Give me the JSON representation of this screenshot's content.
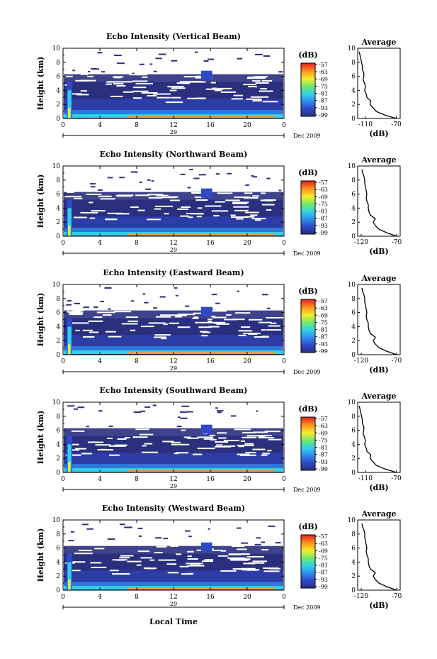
{
  "figure": {
    "xlabel": "Local Time",
    "ylabel": "Height (km)",
    "date_label": "Dec 2009",
    "day_label": "29",
    "cbar_unit": "(dB)",
    "avg_title": "Average",
    "avg_xlabel": "(dB)"
  },
  "chart_data": [
    {
      "type": "heatmap",
      "title": "Echo Intensity (Vertical Beam)",
      "x_ticks": [
        "0",
        "4",
        "8",
        "12",
        "16",
        "20",
        "0"
      ],
      "xlim": [
        0,
        24
      ],
      "y_ticks": [
        "0",
        "2",
        "4",
        "6",
        "8",
        "10"
      ],
      "ylim": [
        0,
        10
      ],
      "colorbar_ticks": [
        "-57",
        "-63",
        "-69",
        "-75",
        "-81",
        "-87",
        "-93",
        "-99"
      ],
      "colorbar_range": [
        -99,
        -57
      ],
      "avg_x_ticks": [
        "-110",
        "-70"
      ],
      "avg_xlim": [
        -120,
        -65
      ],
      "avg_profile": {
        "height": [
          0,
          0.5,
          1,
          1.5,
          2,
          2.5,
          3,
          3.5,
          4,
          4.5,
          5,
          5.5,
          6,
          6.5,
          7,
          7.5,
          8,
          8.5,
          9,
          9.5
        ],
        "db": [
          -70,
          -85,
          -96,
          -100,
          -104,
          -103,
          -108,
          -109,
          -111,
          -110,
          -111,
          -113,
          -112,
          -112,
          -114,
          -114,
          -115,
          -116,
          -117,
          -118
        ]
      }
    },
    {
      "type": "heatmap",
      "title": "Echo Intensity (Northward Beam)",
      "x_ticks": [
        "0",
        "4",
        "8",
        "12",
        "16",
        "20",
        "0"
      ],
      "xlim": [
        0,
        24
      ],
      "y_ticks": [
        "0",
        "2",
        "4",
        "6",
        "8",
        "10"
      ],
      "ylim": [
        0,
        10
      ],
      "colorbar_ticks": [
        "-57",
        "-63",
        "-69",
        "-75",
        "-81",
        "-87",
        "-93",
        "-99"
      ],
      "colorbar_range": [
        -99,
        -57
      ],
      "avg_x_ticks": [
        "-120",
        "-70"
      ],
      "avg_xlim": [
        -125,
        -65
      ],
      "avg_profile": {
        "height": [
          0,
          0.5,
          1,
          1.5,
          2,
          2.5,
          3,
          3.5,
          4,
          4.5,
          5,
          5.5,
          6,
          6.5,
          7,
          7.5,
          8,
          8.5,
          9,
          9.5
        ],
        "db": [
          -70,
          -84,
          -95,
          -100,
          -103,
          -100,
          -107,
          -109,
          -110,
          -110,
          -112,
          -113,
          -112,
          -113,
          -114,
          -115,
          -115,
          -116,
          -118,
          -119
        ]
      }
    },
    {
      "type": "heatmap",
      "title": "Echo Intensity (Eastward Beam)",
      "x_ticks": [
        "0",
        "4",
        "8",
        "12",
        "16",
        "20",
        "0"
      ],
      "xlim": [
        0,
        24
      ],
      "y_ticks": [
        "0",
        "2",
        "4",
        "6",
        "8",
        "10"
      ],
      "ylim": [
        0,
        10
      ],
      "colorbar_ticks": [
        "-57",
        "-63",
        "-69",
        "-75",
        "-81",
        "-87",
        "-93",
        "-99"
      ],
      "colorbar_range": [
        -99,
        -57
      ],
      "avg_x_ticks": [
        "-120",
        "-70"
      ],
      "avg_xlim": [
        -125,
        -65
      ],
      "avg_profile": {
        "height": [
          0,
          0.5,
          1,
          1.5,
          2,
          2.5,
          3,
          3.5,
          4,
          4.5,
          5,
          5.5,
          6,
          6.5,
          7,
          7.5,
          8,
          8.5,
          9,
          9.5
        ],
        "db": [
          -70,
          -84,
          -95,
          -100,
          -103,
          -100,
          -107,
          -109,
          -110,
          -110,
          -112,
          -113,
          -112,
          -113,
          -114,
          -115,
          -115,
          -116,
          -118,
          -119
        ]
      }
    },
    {
      "type": "heatmap",
      "title": "Echo Intensity (Southward Beam)",
      "x_ticks": [
        "0",
        "4",
        "8",
        "12",
        "16",
        "20",
        "0"
      ],
      "xlim": [
        0,
        24
      ],
      "y_ticks": [
        "0",
        "2",
        "4",
        "6",
        "8",
        "10"
      ],
      "ylim": [
        0,
        10
      ],
      "colorbar_ticks": [
        "-57",
        "-63",
        "-69",
        "-75",
        "-81",
        "-87",
        "-93",
        "-99"
      ],
      "colorbar_range": [
        -99,
        -57
      ],
      "avg_x_ticks": [
        "-110",
        "-70"
      ],
      "avg_xlim": [
        -120,
        -65
      ],
      "avg_profile": {
        "height": [
          0,
          0.5,
          1,
          1.5,
          2,
          2.5,
          3,
          3.5,
          4,
          4.5,
          5,
          5.5,
          6,
          6.5,
          7,
          7.5,
          8,
          8.5,
          9,
          9.5
        ],
        "db": [
          -70,
          -85,
          -96,
          -100,
          -104,
          -103,
          -108,
          -109,
          -111,
          -110,
          -111,
          -113,
          -112,
          -112,
          -114,
          -114,
          -115,
          -116,
          -117,
          -118
        ]
      }
    },
    {
      "type": "heatmap",
      "title": "Echo Intensity (Westward Beam)",
      "x_ticks": [
        "0",
        "4",
        "8",
        "12",
        "16",
        "20",
        "0"
      ],
      "xlim": [
        0,
        24
      ],
      "y_ticks": [
        "0",
        "2",
        "4",
        "6",
        "8",
        "10"
      ],
      "ylim": [
        0,
        10
      ],
      "colorbar_ticks": [
        "-57",
        "-63",
        "-69",
        "-75",
        "-81",
        "-87",
        "-93",
        "-99"
      ],
      "colorbar_range": [
        -99,
        -57
      ],
      "avg_x_ticks": [
        "-120",
        "-70"
      ],
      "avg_xlim": [
        -125,
        -65
      ],
      "avg_profile": {
        "height": [
          0,
          0.5,
          1,
          1.5,
          2,
          2.5,
          3,
          3.5,
          4,
          4.5,
          5,
          5.5,
          6,
          6.5,
          7,
          7.5,
          8,
          8.5,
          9,
          9.5
        ],
        "db": [
          -70,
          -84,
          -95,
          -100,
          -103,
          -100,
          -107,
          -109,
          -110,
          -110,
          -112,
          -113,
          -112,
          -113,
          -114,
          -115,
          -115,
          -116,
          -118,
          -119
        ]
      }
    }
  ]
}
